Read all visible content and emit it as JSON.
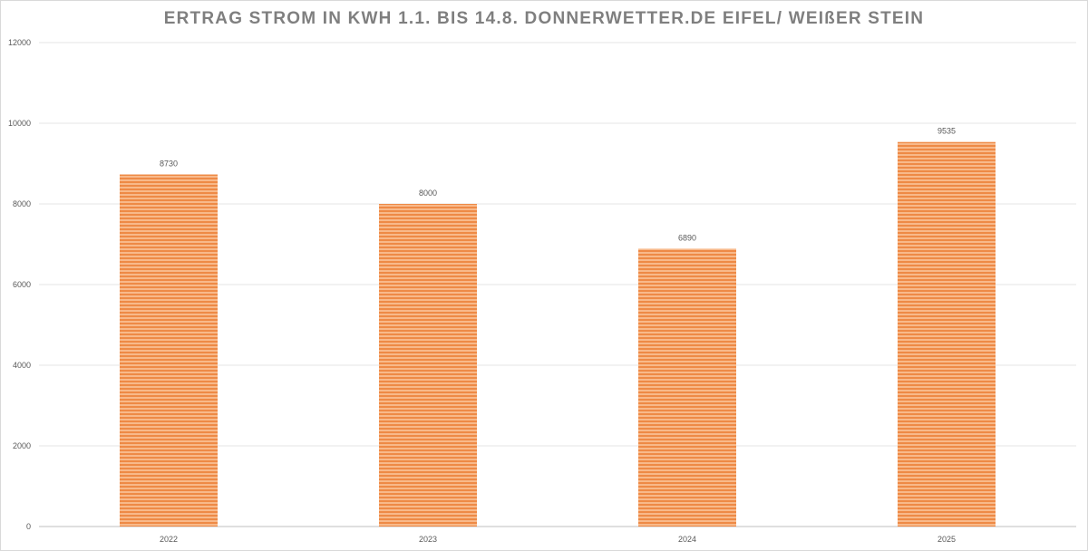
{
  "chart_data": {
    "type": "bar",
    "title": "ERTRAG STROM IN KWH  1.1. BIS 14.8. DONNERWETTER.DE EIFEL/ WEIßER STEIN",
    "categories": [
      "2022",
      "2023",
      "2024",
      "2025"
    ],
    "values": [
      8730,
      8000,
      6890,
      9535
    ],
    "data_labels": [
      "8730",
      "8000",
      "6890",
      "9535"
    ],
    "xlabel": "",
    "ylabel": "",
    "ylim": [
      0,
      12000
    ],
    "yticks": [
      "0",
      "2000",
      "4000",
      "6000",
      "8000",
      "10000",
      "12000"
    ],
    "grid": true,
    "legend": "none",
    "bar_color": "#f4a261",
    "bar_stripe_color": "#ed7d31"
  }
}
